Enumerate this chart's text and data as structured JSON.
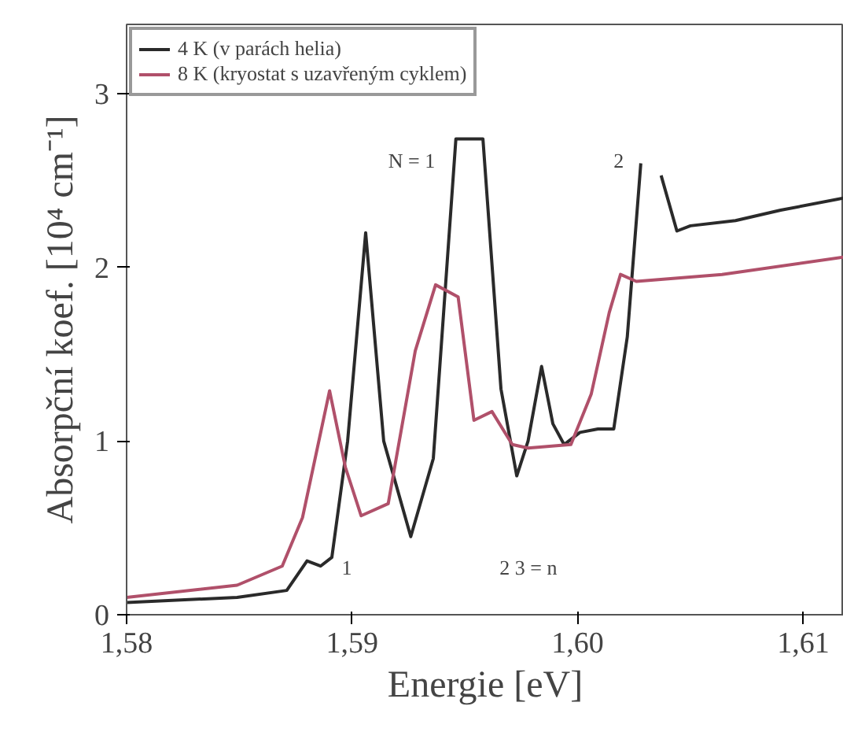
{
  "chart_data": {
    "type": "line",
    "xlabel": "Energie [eV]",
    "ylabel": "Absorpční koef. [10⁴ cm⁻¹]",
    "xlim": [
      1.58,
      1.6118
    ],
    "ylim": [
      0,
      3.4
    ],
    "xticks": [
      {
        "value": 1.58,
        "label": "1,58"
      },
      {
        "value": 1.59,
        "label": "1,59"
      },
      {
        "value": 1.6,
        "label": "1,60"
      },
      {
        "value": 1.61,
        "label": "1,61"
      }
    ],
    "yticks": [
      0,
      1,
      2,
      3
    ],
    "grid": false,
    "legend": "top left",
    "line_style": "solid",
    "marker": "none",
    "series": [
      {
        "name": "4 K (v parách helia)",
        "color": "#2a2a2a",
        "x": [
          1.58,
          1.5849,
          1.5871,
          1.588,
          1.5886,
          1.5891,
          1.5898,
          1.5906,
          1.5914,
          1.5926,
          1.5936,
          1.5946,
          1.5958,
          1.5966,
          1.5973,
          1.5978,
          1.5984,
          1.5989,
          1.5994,
          1.6001,
          1.6009,
          1.6016,
          1.6022,
          1.6028,
          1.6032,
          1.6037,
          1.6044,
          1.605,
          1.607,
          1.609,
          1.6118
        ],
        "values": [
          0.07,
          0.1,
          0.14,
          0.31,
          0.28,
          0.33,
          1.0,
          2.2,
          1.0,
          0.45,
          0.9,
          2.74,
          2.74,
          1.3,
          0.8,
          1.0,
          1.43,
          1.1,
          0.98,
          1.05,
          1.07,
          1.07,
          1.6,
          2.6,
          null,
          2.53,
          2.21,
          2.24,
          2.27,
          2.33,
          2.4
        ]
      },
      {
        "name": "8 K (kryostat s uzavřeným cyklem)",
        "color": "#b0506a",
        "x": [
          1.58,
          1.5849,
          1.5869,
          1.5878,
          1.589,
          1.5897,
          1.5904,
          1.5916,
          1.5928,
          1.5937,
          1.5947,
          1.5954,
          1.5962,
          1.5971,
          1.5978,
          1.5997,
          1.6006,
          1.6014,
          1.6019,
          1.6026,
          1.6064,
          1.6118
        ],
        "values": [
          0.1,
          0.17,
          0.28,
          0.56,
          1.29,
          0.85,
          0.57,
          0.64,
          1.52,
          1.9,
          1.83,
          1.12,
          1.17,
          0.98,
          0.96,
          0.98,
          1.27,
          1.74,
          1.96,
          1.92,
          1.96,
          2.06
        ]
      }
    ],
    "annotations": [
      "N = 1",
      "2",
      "1",
      "2  3 = n"
    ]
  }
}
